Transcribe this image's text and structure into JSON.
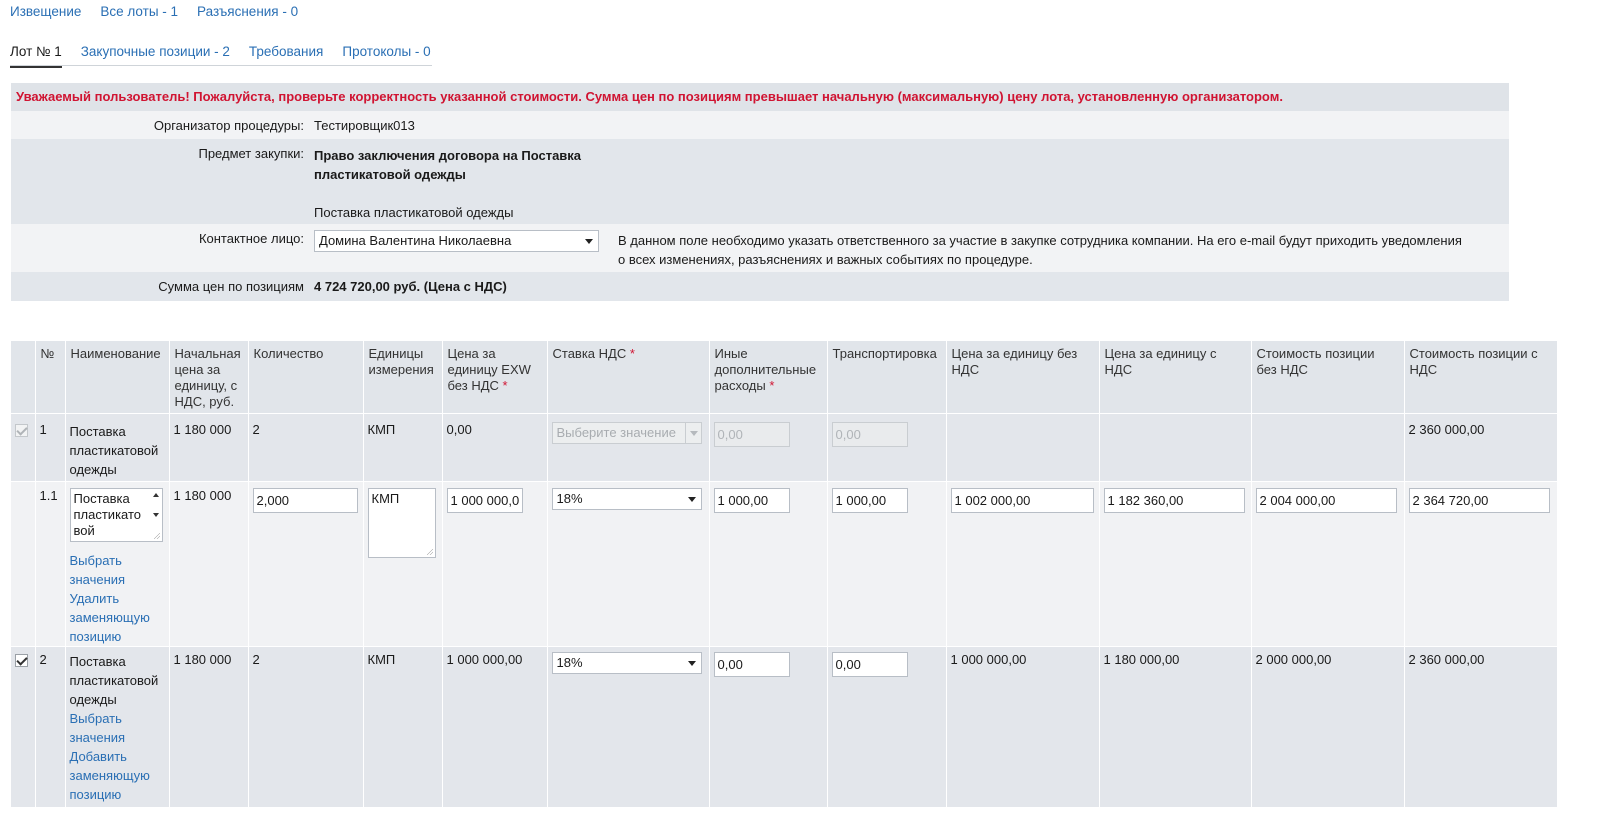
{
  "topnav": {
    "notice": "Извещение",
    "all_lots": "Все лоты - 1",
    "clarifications": "Разъяснения - 0"
  },
  "tabs": {
    "lot": "Лот № 1",
    "positions": "Закупочные позиции - 2",
    "requirements": "Требования",
    "protocols": "Протоколы - 0"
  },
  "alert": "Уважаемый пользователь! Пожалуйста, проверьте корректность указанной стоимости. Сумма цен по позициям превышает начальную (максимальную) цену лота, установленную организатором.",
  "info": {
    "organizer_label": "Организатор процедуры:",
    "organizer_value": "Тестировщик013",
    "subject_label": "Предмет закупки:",
    "subject_line1": "Право заключения договора на Поставка",
    "subject_line2": "пластикатовой одежды",
    "subject_desc": "Поставка пластикатовой одежды",
    "contact_label": "Контактное лицо:",
    "contact_value": "Домина Валентина Николаевна",
    "contact_hint_line1": "В данном поле необходимо указать ответственного за участие в закупке сотрудника компании. На его e-mail будут приходить уведомления",
    "contact_hint_line2": "о всех изменениях, разъяснениях и важных событиях по процедуре.",
    "sum_label": "Сумма цен по позициям",
    "sum_value": "4 724 720,00 руб. (Цена с НДС)"
  },
  "table": {
    "headers": {
      "num": "№",
      "name": "Наименование",
      "start_price": [
        "Начальная",
        "цена за",
        "единицу, с",
        "НДС, руб."
      ],
      "quantity": "Количество",
      "units": [
        "Единицы",
        "измерения"
      ],
      "price_exw": [
        "Цена за",
        "единицу EXW",
        "без НДС"
      ],
      "vat_rate": "Ставка НДС",
      "other_costs": [
        "Иные",
        "дополнительные",
        "расходы"
      ],
      "transport": "Транспортировка",
      "unit_no_vat": [
        "Цена за единицу без",
        "НДС"
      ],
      "unit_with_vat": [
        "Цена за единицу с",
        "НДС"
      ],
      "cost_no_vat": [
        "Стоимость позиции",
        "без НДС"
      ],
      "cost_with_vat": [
        "Стоимость позиции с",
        "НДС"
      ],
      "required_mark": "*"
    },
    "rows": {
      "r1": {
        "num": "1",
        "name_lines": [
          "Поставка",
          "пластикатовой",
          "одежды"
        ],
        "start_price": "1 180 000",
        "quantity": "2",
        "units": "КМП",
        "price_exw": "0,00",
        "vat_placeholder": "Выберите значение",
        "other_costs": "0,00",
        "transport": "0,00",
        "cost_with_vat": "2 360 000,00"
      },
      "r11": {
        "num": "1.1",
        "name_lines": [
          "Поставка",
          "пластикато",
          "вой"
        ],
        "start_price": "1 180 000",
        "quantity": "2,000",
        "units": "КМП",
        "price_exw": "1 000 000,0",
        "vat": "18%",
        "other_costs": "1 000,00",
        "transport": "1 000,00",
        "unit_no_vat": "1 002 000,00",
        "unit_with_vat": "1 182 360,00",
        "cost_no_vat": "2 004 000,00",
        "cost_with_vat": "2 364 720,00",
        "link_select": [
          "Выбрать",
          "значения"
        ],
        "link_delete": [
          "Удалить",
          "заменяющую",
          "позицию"
        ]
      },
      "r2": {
        "num": "2",
        "name_lines": [
          "Поставка",
          "пластикатовой",
          "одежды"
        ],
        "start_price": "1 180 000",
        "quantity": "2",
        "units": "КМП",
        "price_exw": "1 000 000,00",
        "vat": "18%",
        "other_costs": "0,00",
        "transport": "0,00",
        "unit_no_vat": "1 000 000,00",
        "unit_with_vat": "1 180 000,00",
        "cost_no_vat": "2 000 000,00",
        "cost_with_vat": "2 360 000,00",
        "link_select": [
          "Выбрать",
          "значения"
        ],
        "link_add": [
          "Добавить",
          "заменяющую",
          "позицию"
        ]
      }
    }
  },
  "colors": {
    "link": "#2a6fb4",
    "alert": "#d01432",
    "header_bg": "#e1e5ea",
    "row_dark": "#e3e6eb",
    "row_light": "#f1f2f4"
  }
}
